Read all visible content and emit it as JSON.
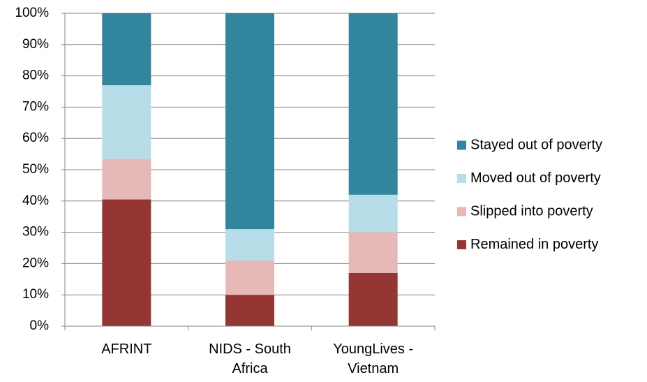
{
  "chart_data": {
    "type": "bar",
    "stacked": true,
    "categories": [
      "AFRINT",
      "NIDS - South Africa",
      "YoungLives - Vietnam"
    ],
    "series": [
      {
        "name": "Remained in poverty",
        "color": "#943634",
        "values": [
          40.5,
          10,
          17
        ]
      },
      {
        "name": "Slipped into poverty",
        "color": "#e6b9b8",
        "values": [
          13,
          11,
          13
        ]
      },
      {
        "name": "Moved out of poverty",
        "color": "#b7dee8",
        "values": [
          23.5,
          10,
          12
        ]
      },
      {
        "name": "Stayed out of poverty",
        "color": "#31859c",
        "values": [
          23,
          69,
          58
        ]
      }
    ],
    "ylim": [
      0,
      100
    ],
    "yticks": [
      {
        "value": 0,
        "label": "0%"
      },
      {
        "value": 10,
        "label": "10%"
      },
      {
        "value": 20,
        "label": "20%"
      },
      {
        "value": 30,
        "label": "30%"
      },
      {
        "value": 40,
        "label": "40%"
      },
      {
        "value": 50,
        "label": "50%"
      },
      {
        "value": 60,
        "label": "60%"
      },
      {
        "value": 70,
        "label": "70%"
      },
      {
        "value": 80,
        "label": "80%"
      },
      {
        "value": 90,
        "label": "90%"
      },
      {
        "value": 100,
        "label": "100%"
      }
    ],
    "grid": true,
    "legend": "right"
  }
}
